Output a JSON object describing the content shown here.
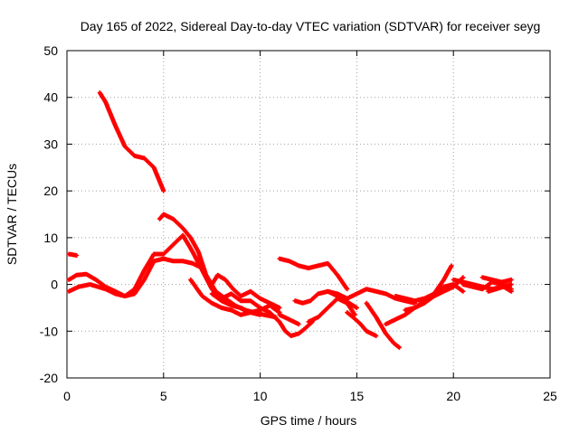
{
  "chart_data": {
    "type": "scatter",
    "title": "Day 165 of 2022, Sidereal Day-to-day VTEC variation (SDTVAR) for receiver seyg",
    "xlabel": "GPS time / hours",
    "ylabel": "SDTVAR / TECUs",
    "xlim": [
      0,
      25
    ],
    "ylim": [
      -20,
      50
    ],
    "xticks": [
      "0",
      "5",
      "10",
      "15",
      "20",
      "25"
    ],
    "yticks": [
      "-20",
      "-10",
      "0",
      "10",
      "20",
      "30",
      "40",
      "50"
    ],
    "grid": true,
    "series_color": "#ff0000",
    "series": [
      {
        "name": "s1",
        "x": [
          1.7,
          2.0,
          2.5,
          3.0,
          3.5,
          4.0,
          4.5,
          5.0
        ],
        "y": [
          41,
          39,
          34,
          29.5,
          27.5,
          27,
          25,
          20
        ]
      },
      {
        "name": "s2",
        "x": [
          0.1,
          0.5
        ],
        "y": [
          6.5,
          6.2
        ]
      },
      {
        "name": "s3",
        "x": [
          0.1,
          0.5,
          1.0,
          1.5,
          2.0,
          2.5,
          3.0,
          3.5,
          4.0,
          4.5,
          5.0,
          5.5,
          6.0,
          6.5,
          7.0
        ],
        "y": [
          1.0,
          2.0,
          2.2,
          1.0,
          -0.5,
          -1.5,
          -2.5,
          -2.0,
          1.0,
          5.0,
          5.5,
          5.0,
          5.0,
          4.5,
          3.5
        ]
      },
      {
        "name": "s4",
        "x": [
          0.1,
          0.6,
          1.2,
          2.0,
          2.5,
          3.0,
          3.5,
          4.0,
          4.5,
          5.0,
          5.5,
          6.0,
          6.5,
          7.0,
          7.5,
          8.0,
          8.5,
          9.0,
          9.5,
          10.0,
          10.5,
          11.0,
          11.3,
          11.6,
          12.0,
          12.3,
          12.7
        ],
        "y": [
          -1.5,
          -0.5,
          0.0,
          -1.0,
          -2.0,
          -2.5,
          -1.0,
          3.0,
          6.5,
          6.5,
          8.5,
          10.5,
          7.0,
          3.0,
          -1.0,
          -3.0,
          -2.0,
          -3.5,
          -3.5,
          -5.0,
          -6.0,
          -8.0,
          -10.0,
          -11.0,
          -10.5,
          -9.5,
          -8.0
        ]
      },
      {
        "name": "s5",
        "x": [
          4.8,
          5.0,
          5.5,
          6.0,
          6.4,
          6.8,
          7.2,
          7.7,
          8.2,
          8.7,
          9.2,
          9.7,
          10.2,
          10.8
        ],
        "y": [
          14.0,
          15.0,
          14.0,
          12.0,
          10.0,
          7.0,
          2.0,
          -1.5,
          -3.0,
          -4.5,
          -5.5,
          -6.0,
          -6.5,
          -7.0
        ]
      },
      {
        "name": "s6",
        "x": [
          6.4,
          7.0,
          7.5,
          8.0,
          8.5,
          9.0,
          9.5,
          10.0,
          10.5,
          11.0
        ],
        "y": [
          1.0,
          -2.5,
          -4.0,
          -5.0,
          -5.5,
          -6.5,
          -6.0,
          -5.5,
          -4.5,
          -6.0
        ]
      },
      {
        "name": "s7",
        "x": [
          7.5,
          7.8,
          8.2,
          8.6,
          9.0,
          9.5,
          10.0,
          10.5,
          11.0
        ],
        "y": [
          0.0,
          2.0,
          1.0,
          -1.0,
          -2.5,
          -1.5,
          -3.0,
          -4.0,
          -5.0
        ]
      },
      {
        "name": "s8",
        "x": [
          7.5,
          8.0,
          8.5,
          9.0,
          9.5,
          10.0
        ],
        "y": [
          -2.0,
          -3.5,
          -4.5,
          -5.0,
          -6.0,
          -6.5
        ]
      },
      {
        "name": "s9",
        "x": [
          11.0,
          11.5,
          12.0,
          12.5,
          13.0,
          13.5,
          14.0,
          14.5
        ],
        "y": [
          5.5,
          5.0,
          4.0,
          3.5,
          4.0,
          4.5,
          2.0,
          -1.0
        ]
      },
      {
        "name": "s10",
        "x": [
          11.0,
          11.5,
          12.0
        ],
        "y": [
          -6.5,
          -7.5,
          -8.5
        ]
      },
      {
        "name": "s11",
        "x": [
          11.8,
          12.2,
          12.6,
          13.0,
          13.5,
          14.0,
          14.5,
          15.0,
          15.5,
          16.0,
          16.5,
          17.0,
          17.5,
          18.0
        ],
        "y": [
          -3.5,
          -4.0,
          -3.5,
          -2.0,
          -1.5,
          -2.0,
          -3.0,
          -2.0,
          -1.0,
          -1.5,
          -2.0,
          -3.0,
          -3.5,
          -4.0
        ]
      },
      {
        "name": "s12",
        "x": [
          12.5,
          13.0,
          13.5,
          14.0,
          14.5,
          14.9
        ],
        "y": [
          -8.0,
          -7.0,
          -5.0,
          -3.0,
          -4.0,
          -6.5
        ]
      },
      {
        "name": "s13",
        "x": [
          13.5,
          14.0,
          14.3,
          14.6,
          15.0
        ],
        "y": [
          -1.5,
          -2.5,
          -3.0,
          -4.0,
          -5.0
        ]
      },
      {
        "name": "s14",
        "x": [
          14.5,
          14.8,
          15.2,
          15.5,
          16.0
        ],
        "y": [
          -6.0,
          -7.0,
          -8.5,
          -10.0,
          -11.0
        ]
      },
      {
        "name": "s15",
        "x": [
          15.5,
          16.0,
          16.5,
          16.9,
          17.2
        ],
        "y": [
          -4.0,
          -7.0,
          -10.5,
          -12.5,
          -13.5
        ]
      },
      {
        "name": "s16",
        "x": [
          16.5,
          17.0,
          17.5,
          18.0,
          18.5,
          19.0,
          19.5,
          20.0,
          20.5
        ],
        "y": [
          -8.5,
          -7.5,
          -6.5,
          -5.0,
          -3.5,
          -2.0,
          -0.5,
          0.0,
          -1.5
        ]
      },
      {
        "name": "s17",
        "x": [
          17.0,
          17.5,
          18.0,
          18.5,
          19.0,
          19.5,
          19.9
        ],
        "y": [
          -2.5,
          -3.0,
          -3.5,
          -3.0,
          -2.0,
          1.0,
          4.0
        ]
      },
      {
        "name": "s18",
        "x": [
          17.5,
          18.0,
          18.5,
          19.0,
          19.5,
          20.0,
          20.5
        ],
        "y": [
          -5.5,
          -5.0,
          -4.0,
          -2.5,
          -1.5,
          -0.5,
          1.5
        ]
      },
      {
        "name": "s19",
        "x": [
          20.0,
          20.5,
          21.0,
          21.5,
          22.0,
          22.5,
          23.0
        ],
        "y": [
          1.0,
          0.5,
          0.0,
          -0.5,
          -1.0,
          -0.5,
          0.0
        ]
      },
      {
        "name": "s20",
        "x": [
          20.5,
          21.0,
          21.5,
          22.0,
          22.5,
          23.0
        ],
        "y": [
          0.0,
          -0.5,
          -1.0,
          0.5,
          0.0,
          -1.0
        ]
      },
      {
        "name": "s21",
        "x": [
          21.5,
          22.0,
          22.5,
          23.0
        ],
        "y": [
          1.5,
          1.0,
          0.5,
          1.0
        ]
      },
      {
        "name": "s22",
        "x": [
          21.8,
          22.2,
          22.6,
          23.0
        ],
        "y": [
          -1.5,
          -1.0,
          -0.5,
          -1.5
        ]
      }
    ]
  }
}
